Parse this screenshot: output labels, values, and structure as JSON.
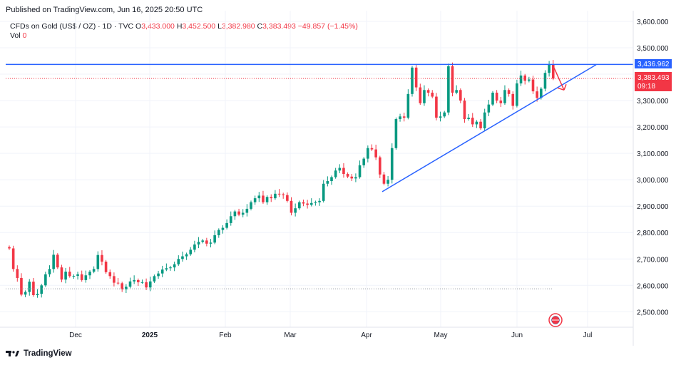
{
  "header": {
    "published": "Published on TradingView.com, Jun 16, 2025 20:50 UTC"
  },
  "legend": {
    "symbol": "CFDs on Gold (US$ / OZ) · 1D · TVC",
    "o_label": "O",
    "o_value": "3,433.000",
    "h_label": "H",
    "h_value": "3,452.500",
    "l_label": "L",
    "l_value": "3,382.980",
    "c_label": "C",
    "c_value": "3,383.493",
    "change": "−49.857 (−1.45%)",
    "vol_label": "Vol",
    "vol_value": "0"
  },
  "price_tags": {
    "line_level": "3,436.962",
    "last_price": "3,383.493",
    "countdown": "09:18"
  },
  "brand": {
    "name": "TradingView"
  },
  "colors": {
    "up": "#089981",
    "down": "#f23645",
    "line": "#2962ff"
  },
  "chart_data": {
    "type": "candlestick",
    "y_ticks": [
      "3,600.000",
      "3,500.000",
      "3,400.000",
      "3,300.000",
      "3,200.000",
      "3,100.000",
      "3,000.000",
      "2,900.000",
      "2,800.000",
      "2,700.000",
      "2,600.000",
      "2,500.000"
    ],
    "ylim": [
      2430,
      3620
    ],
    "x_ticks": [
      "Dec",
      "2025",
      "Feb",
      "Mar",
      "Apr",
      "May",
      "Jun",
      "Jul"
    ],
    "horizontal_line": 3436.962,
    "dotted_line": 3383.493,
    "trendline": {
      "from": [
        "2025-04-07",
        2955
      ],
      "to": [
        "2025-07-01",
        3436
      ]
    },
    "projection_arrow": {
      "from": [
        "2025-06-13",
        3430
      ],
      "to": [
        "2025-06-20",
        3340
      ]
    },
    "closes": [
      2740,
      2662,
      2628,
      2565,
      2575,
      2614,
      2563,
      2568,
      2600,
      2642,
      2662,
      2716,
      2668,
      2622,
      2652,
      2635,
      2636,
      2642,
      2620,
      2638,
      2652,
      2662,
      2715,
      2690,
      2650,
      2635,
      2610,
      2608,
      2585,
      2595,
      2615,
      2620,
      2612,
      2612,
      2592,
      2615,
      2635,
      2645,
      2660,
      2665,
      2668,
      2680,
      2700,
      2710,
      2718,
      2735,
      2755,
      2765,
      2770,
      2758,
      2762,
      2790,
      2810,
      2818,
      2836,
      2862,
      2880,
      2868,
      2875,
      2890,
      2915,
      2930,
      2940,
      2915,
      2935,
      2930,
      2947,
      2945,
      2942,
      2920,
      2875,
      2892,
      2915,
      2910,
      2905,
      2912,
      2915,
      2920,
      2985,
      2995,
      3010,
      3035,
      3045,
      3022,
      3012,
      3005,
      3010,
      3055,
      3080,
      3120,
      3115,
      3085,
      3020,
      2985,
      3000,
      3120,
      3230,
      3240,
      3235,
      3325,
      3425,
      3350,
      3290,
      3340,
      3330,
      3315,
      3235,
      3240,
      3255,
      3430,
      3330,
      3340,
      3300,
      3230,
      3235,
      3210,
      3220,
      3195,
      3255,
      3285,
      3330,
      3300,
      3290,
      3340,
      3325,
      3280,
      3365,
      3395,
      3375,
      3380,
      3335,
      3310,
      3345,
      3405,
      3436,
      3383.493
    ]
  }
}
